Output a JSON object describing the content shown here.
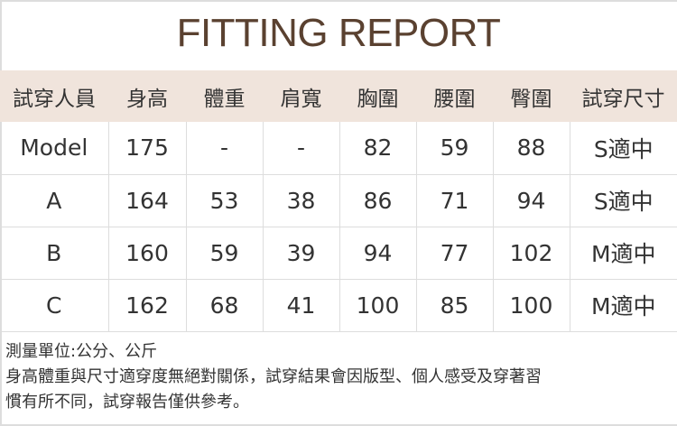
{
  "title": "FITTING REPORT",
  "headers": [
    "試穿人員",
    "身高",
    "體重",
    "肩寬",
    "胸圍",
    "腰圍",
    "臀圍",
    "試穿尺寸"
  ],
  "rows": [
    [
      "Model",
      "175",
      "-",
      "-",
      "82",
      "59",
      "88",
      "S適中"
    ],
    [
      "A",
      "164",
      "53",
      "38",
      "86",
      "71",
      "94",
      "S適中"
    ],
    [
      "B",
      "160",
      "59",
      "39",
      "94",
      "77",
      "102",
      "M適中"
    ],
    [
      "C",
      "162",
      "68",
      "41",
      "100",
      "85",
      "100",
      "M適中"
    ]
  ],
  "notes": [
    "測量單位:公分、公斤",
    "身高體重與尺寸適穿度無絕對關係，試穿結果會因版型、個人感受及穿著習",
    "慣有所不同，試穿報告僅供參考。"
  ],
  "colors": {
    "title": "#5a4130",
    "header_bg": "#f0e4dc"
  }
}
